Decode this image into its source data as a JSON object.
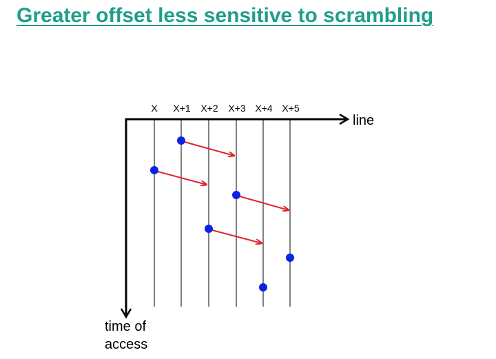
{
  "title": "Greater offset less sensitive to scrambling",
  "diagram": {
    "x_axis_label": "line",
    "y_axis_label_lines": [
      "time of",
      "access"
    ],
    "columns": [
      "X",
      "X+1",
      "X+2",
      "X+3",
      "X+4",
      "X+5"
    ],
    "colors": {
      "axis": "#000000",
      "access_point": "#0a22e6",
      "prefetch_arrow": "#e0262c"
    },
    "access_points": [
      {
        "column": "X+1",
        "order": 1
      },
      {
        "column": "X",
        "order": 2
      },
      {
        "column": "X+3",
        "order": 3
      },
      {
        "column": "X+2",
        "order": 4
      },
      {
        "column": "X+5",
        "order": 5
      },
      {
        "column": "X+4",
        "order": 6
      }
    ],
    "prefetch_arrows": [
      {
        "from": "X+1",
        "to": "X+3"
      },
      {
        "from": "X",
        "to": "X+2"
      },
      {
        "from": "X+3",
        "to": "X+5"
      },
      {
        "from": "X+2",
        "to": "X+4"
      }
    ]
  }
}
